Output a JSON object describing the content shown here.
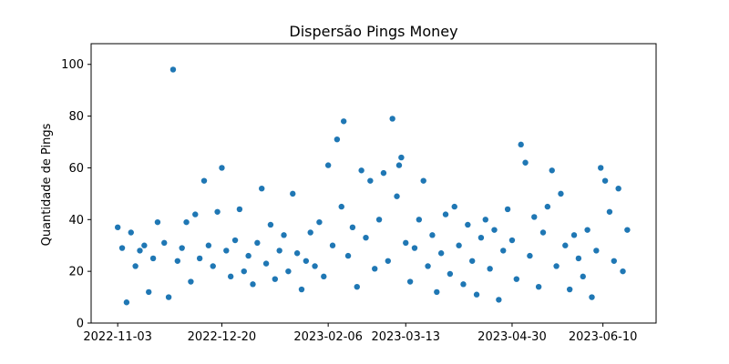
{
  "chart_data": {
    "type": "scatter",
    "title": "Dispersão Pings Money",
    "xlabel": "",
    "ylabel": "Quantidade de Pings",
    "x_tick_labels": [
      "2022-11-03",
      "2022-12-20",
      "2023-02-06",
      "2023-03-13",
      "2023-04-30",
      "2023-06-10"
    ],
    "y_tick_labels": [
      "0",
      "20",
      "40",
      "60",
      "80",
      "100"
    ],
    "xlim": [
      "2022-10-22",
      "2023-07-04"
    ],
    "ylim": [
      0,
      108
    ],
    "grid": false,
    "marker_color": "#1f77b4",
    "series": [
      {
        "points": [
          [
            "2022-11-03",
            37
          ],
          [
            "2022-11-05",
            29
          ],
          [
            "2022-11-07",
            8
          ],
          [
            "2022-11-09",
            35
          ],
          [
            "2022-11-11",
            22
          ],
          [
            "2022-11-13",
            28
          ],
          [
            "2022-11-15",
            30
          ],
          [
            "2022-11-17",
            12
          ],
          [
            "2022-11-19",
            25
          ],
          [
            "2022-11-21",
            39
          ],
          [
            "2022-11-24",
            31
          ],
          [
            "2022-11-26",
            10
          ],
          [
            "2022-11-28",
            98
          ],
          [
            "2022-11-30",
            24
          ],
          [
            "2022-12-02",
            29
          ],
          [
            "2022-12-04",
            39
          ],
          [
            "2022-12-06",
            16
          ],
          [
            "2022-12-08",
            42
          ],
          [
            "2022-12-10",
            25
          ],
          [
            "2022-12-12",
            55
          ],
          [
            "2022-12-14",
            30
          ],
          [
            "2022-12-16",
            22
          ],
          [
            "2022-12-18",
            43
          ],
          [
            "2022-12-20",
            60
          ],
          [
            "2022-12-22",
            28
          ],
          [
            "2022-12-24",
            18
          ],
          [
            "2022-12-26",
            32
          ],
          [
            "2022-12-28",
            44
          ],
          [
            "2022-12-30",
            20
          ],
          [
            "2023-01-01",
            26
          ],
          [
            "2023-01-03",
            15
          ],
          [
            "2023-01-05",
            31
          ],
          [
            "2023-01-07",
            52
          ],
          [
            "2023-01-09",
            23
          ],
          [
            "2023-01-11",
            38
          ],
          [
            "2023-01-13",
            17
          ],
          [
            "2023-01-15",
            28
          ],
          [
            "2023-01-17",
            34
          ],
          [
            "2023-01-19",
            20
          ],
          [
            "2023-01-21",
            50
          ],
          [
            "2023-01-23",
            27
          ],
          [
            "2023-01-25",
            13
          ],
          [
            "2023-01-27",
            24
          ],
          [
            "2023-01-29",
            35
          ],
          [
            "2023-01-31",
            22
          ],
          [
            "2023-02-02",
            39
          ],
          [
            "2023-02-04",
            18
          ],
          [
            "2023-02-06",
            61
          ],
          [
            "2023-02-08",
            30
          ],
          [
            "2023-02-10",
            71
          ],
          [
            "2023-02-12",
            45
          ],
          [
            "2023-02-13",
            78
          ],
          [
            "2023-02-15",
            26
          ],
          [
            "2023-02-17",
            37
          ],
          [
            "2023-02-19",
            14
          ],
          [
            "2023-02-21",
            59
          ],
          [
            "2023-02-23",
            33
          ],
          [
            "2023-02-25",
            55
          ],
          [
            "2023-02-27",
            21
          ],
          [
            "2023-03-01",
            40
          ],
          [
            "2023-03-03",
            58
          ],
          [
            "2023-03-05",
            24
          ],
          [
            "2023-03-07",
            79
          ],
          [
            "2023-03-09",
            49
          ],
          [
            "2023-03-10",
            61
          ],
          [
            "2023-03-11",
            64
          ],
          [
            "2023-03-13",
            31
          ],
          [
            "2023-03-15",
            16
          ],
          [
            "2023-03-17",
            29
          ],
          [
            "2023-03-19",
            40
          ],
          [
            "2023-03-21",
            55
          ],
          [
            "2023-03-23",
            22
          ],
          [
            "2023-03-25",
            34
          ],
          [
            "2023-03-27",
            12
          ],
          [
            "2023-03-29",
            27
          ],
          [
            "2023-03-31",
            42
          ],
          [
            "2023-04-02",
            19
          ],
          [
            "2023-04-04",
            45
          ],
          [
            "2023-04-06",
            30
          ],
          [
            "2023-04-08",
            15
          ],
          [
            "2023-04-10",
            38
          ],
          [
            "2023-04-12",
            24
          ],
          [
            "2023-04-14",
            11
          ],
          [
            "2023-04-16",
            33
          ],
          [
            "2023-04-18",
            40
          ],
          [
            "2023-04-20",
            21
          ],
          [
            "2023-04-22",
            36
          ],
          [
            "2023-04-24",
            9
          ],
          [
            "2023-04-26",
            28
          ],
          [
            "2023-04-28",
            44
          ],
          [
            "2023-04-30",
            32
          ],
          [
            "2023-05-02",
            17
          ],
          [
            "2023-05-04",
            69
          ],
          [
            "2023-05-06",
            62
          ],
          [
            "2023-05-08",
            26
          ],
          [
            "2023-05-10",
            41
          ],
          [
            "2023-05-12",
            14
          ],
          [
            "2023-05-14",
            35
          ],
          [
            "2023-05-16",
            45
          ],
          [
            "2023-05-18",
            59
          ],
          [
            "2023-05-20",
            22
          ],
          [
            "2023-05-22",
            50
          ],
          [
            "2023-05-24",
            30
          ],
          [
            "2023-05-26",
            13
          ],
          [
            "2023-05-28",
            34
          ],
          [
            "2023-05-30",
            25
          ],
          [
            "2023-06-01",
            18
          ],
          [
            "2023-06-03",
            36
          ],
          [
            "2023-06-05",
            10
          ],
          [
            "2023-06-07",
            28
          ],
          [
            "2023-06-09",
            60
          ],
          [
            "2023-06-11",
            55
          ],
          [
            "2023-06-13",
            43
          ],
          [
            "2023-06-15",
            24
          ],
          [
            "2023-06-17",
            52
          ],
          [
            "2023-06-19",
            20
          ],
          [
            "2023-06-21",
            36
          ]
        ]
      }
    ]
  }
}
